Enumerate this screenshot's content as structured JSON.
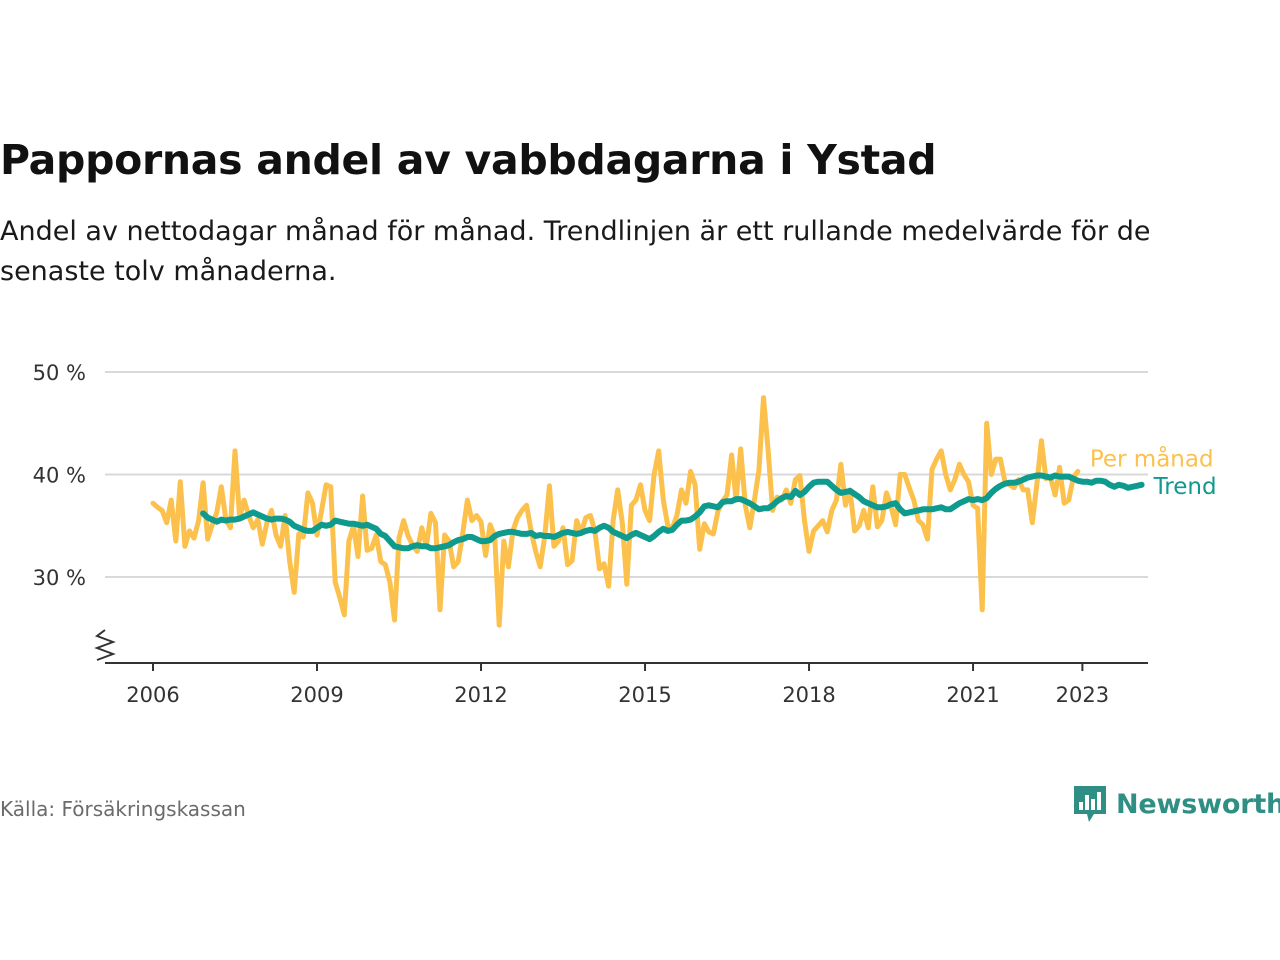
{
  "title": "Pappornas andel av vabbdagarna i Ystad",
  "subtitle": "Andel av nettodagar månad för månad. Trendlinjen är ett rullande medelvärde för de senaste tolv månaderna.",
  "source": "Källa: Försäkringskassan",
  "brand": "Newsworthy",
  "colors": {
    "monthly": "#fbc14c",
    "trend": "#0f9a8e",
    "grid": "#d9d9d9",
    "axis": "#333333",
    "brand": "#2f8f85"
  },
  "chart_data": {
    "type": "line",
    "y_unit": "%",
    "ylim": [
      21,
      51
    ],
    "y_ticks": [
      30,
      40,
      50
    ],
    "y_tick_labels": [
      "30 %",
      "40 %",
      "50 %"
    ],
    "x_ticks": [
      2006,
      2009,
      2012,
      2015,
      2018,
      2021,
      2023
    ],
    "x_tick_labels": [
      "2006",
      "2009",
      "2012",
      "2015",
      "2018",
      "2021",
      "2023"
    ],
    "grid": true,
    "axis_break": true,
    "series": [
      {
        "name": "Per månad",
        "x_start": "2006-01",
        "values": [
          37.2,
          36.8,
          36.5,
          35.3,
          37.5,
          33.5,
          39.3,
          33.0,
          34.5,
          33.8,
          35.5,
          39.2,
          33.7,
          35.1,
          36.3,
          38.8,
          35.6,
          34.8,
          42.3,
          35.8,
          37.5,
          36.0,
          34.8,
          35.6,
          33.2,
          35.3,
          36.5,
          34.1,
          33.0,
          36.0,
          31.5,
          28.5,
          34.2,
          33.9,
          38.2,
          37.2,
          34.1,
          36.5,
          39.0,
          38.8,
          29.5,
          28.0,
          26.3,
          33.5,
          35.0,
          32.0,
          37.9,
          32.6,
          32.8,
          34.1,
          31.5,
          31.2,
          29.5,
          25.8,
          33.8,
          35.5,
          34.0,
          33.1,
          32.5,
          34.8,
          33.0,
          36.2,
          35.3,
          26.8,
          34.1,
          33.5,
          31.0,
          31.5,
          34.3,
          37.5,
          35.5,
          36.0,
          35.4,
          32.1,
          35.1,
          34.0,
          25.3,
          33.5,
          31.0,
          34.5,
          35.8,
          36.5,
          37.0,
          34.5,
          32.5,
          31.0,
          34.0,
          38.9,
          33.0,
          33.5,
          34.8,
          31.2,
          31.6,
          35.5,
          34.3,
          35.8,
          36.0,
          34.5,
          30.8,
          31.3,
          29.1,
          35.5,
          38.5,
          35.3,
          29.3,
          37.0,
          37.5,
          39.0,
          36.5,
          35.5,
          40.0,
          42.3,
          37.5,
          35.0,
          34.8,
          36.0,
          38.5,
          37.2,
          40.3,
          39.0,
          32.7,
          35.2,
          34.4,
          34.2,
          36.4,
          37.4,
          38.0,
          41.9,
          37.5,
          42.5,
          37.0,
          34.8,
          37.5,
          40.4,
          47.5,
          42.5,
          36.5,
          37.8,
          37.5,
          38.5,
          37.2,
          39.5,
          39.9,
          35.5,
          32.5,
          34.5,
          35.0,
          35.5,
          34.4,
          36.5,
          37.5,
          41.0,
          37.0,
          38.5,
          34.5,
          35.0,
          36.5,
          34.8,
          38.8,
          34.9,
          35.5,
          38.2,
          36.9,
          35.1,
          40.0,
          40.0,
          38.7,
          37.5,
          35.5,
          35.1,
          33.7,
          40.5,
          41.5,
          42.3,
          40.0,
          38.5,
          39.5,
          41.0,
          40.0,
          39.3,
          37.0,
          36.7,
          26.8,
          45.0,
          40.0,
          41.5,
          41.5,
          39.3,
          39.0,
          38.7,
          39.5,
          38.5,
          38.5,
          35.3,
          39.0,
          43.3,
          39.6,
          39.7,
          38.0,
          40.7,
          37.2,
          37.5,
          39.7,
          40.3
        ]
      },
      {
        "name": "Trend",
        "x_start": "2006-12",
        "values": [
          36.2,
          35.8,
          35.6,
          35.4,
          35.6,
          35.5,
          35.6,
          35.6,
          35.7,
          35.9,
          36.1,
          36.3,
          36.1,
          35.9,
          35.7,
          35.6,
          35.7,
          35.7,
          35.6,
          35.4,
          35.0,
          34.8,
          34.6,
          34.5,
          34.5,
          34.8,
          35.1,
          35.0,
          35.1,
          35.5,
          35.4,
          35.3,
          35.2,
          35.2,
          35.1,
          35.0,
          35.1,
          34.9,
          34.7,
          34.2,
          34.0,
          33.5,
          33.0,
          32.9,
          32.8,
          32.8,
          33.0,
          33.1,
          33.0,
          33.0,
          32.8,
          32.8,
          32.9,
          33.0,
          33.1,
          33.4,
          33.6,
          33.7,
          33.9,
          33.9,
          33.7,
          33.5,
          33.5,
          33.6,
          34.0,
          34.2,
          34.3,
          34.4,
          34.4,
          34.3,
          34.2,
          34.2,
          34.3,
          34.0,
          34.1,
          34.0,
          34.0,
          33.9,
          34.1,
          34.3,
          34.4,
          34.3,
          34.2,
          34.3,
          34.5,
          34.6,
          34.5,
          34.8,
          35.0,
          34.8,
          34.4,
          34.2,
          34.0,
          33.8,
          34.1,
          34.3,
          34.1,
          33.9,
          33.7,
          34.0,
          34.4,
          34.7,
          34.5,
          34.6,
          35.1,
          35.5,
          35.5,
          35.6,
          35.9,
          36.3,
          36.9,
          37.0,
          36.9,
          36.8,
          37.3,
          37.4,
          37.4,
          37.6,
          37.6,
          37.4,
          37.2,
          36.9,
          36.6,
          36.7,
          36.7,
          37.0,
          37.4,
          37.7,
          37.9,
          37.8,
          38.4,
          38.0,
          38.3,
          38.8,
          39.2,
          39.3,
          39.3,
          39.3,
          38.9,
          38.5,
          38.2,
          38.3,
          38.4,
          38.1,
          37.8,
          37.4,
          37.2,
          37.0,
          36.8,
          36.8,
          36.9,
          37.1,
          37.2,
          36.6,
          36.2,
          36.3,
          36.4,
          36.5,
          36.6,
          36.6,
          36.6,
          36.7,
          36.8,
          36.6,
          36.6,
          36.9,
          37.2,
          37.4,
          37.6,
          37.5,
          37.6,
          37.5,
          37.7,
          38.2,
          38.6,
          38.9,
          39.1,
          39.2,
          39.2,
          39.3,
          39.5,
          39.7,
          39.8,
          39.9,
          39.9,
          39.8,
          39.7,
          39.9,
          39.8,
          39.8,
          39.8,
          39.6,
          39.4,
          39.3,
          39.3,
          39.2,
          39.4,
          39.4,
          39.3,
          39.0,
          38.8,
          39.0,
          38.9,
          38.7,
          38.8,
          38.9,
          39.0
        ]
      }
    ]
  }
}
